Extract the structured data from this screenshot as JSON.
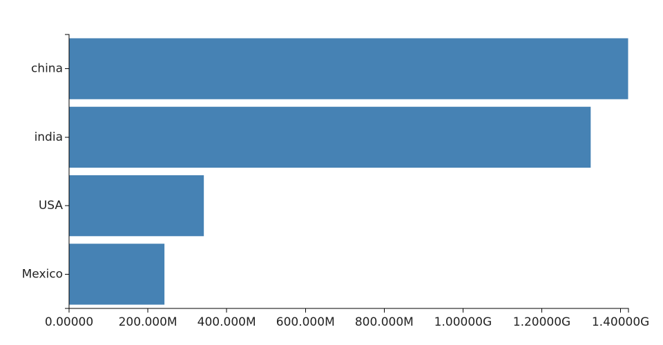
{
  "chart_data": {
    "type": "bar",
    "orientation": "horizontal",
    "categories": [
      "china",
      "india",
      "USA",
      "Mexico"
    ],
    "values": [
      1420000000,
      1325000000,
      343000000,
      243000000
    ],
    "x_ticks": [
      {
        "value": 0,
        "label": "0.00000"
      },
      {
        "value": 200000000,
        "label": "200.000M"
      },
      {
        "value": 400000000,
        "label": "400.000M"
      },
      {
        "value": 600000000,
        "label": "600.000M"
      },
      {
        "value": 800000000,
        "label": "800.000M"
      },
      {
        "value": 1000000000,
        "label": "1.00000G"
      },
      {
        "value": 1200000000,
        "label": "1.20000G"
      },
      {
        "value": 1400000000,
        "label": "1.40000G"
      }
    ],
    "xlim": [
      0,
      1420000000
    ],
    "title": "",
    "xlabel": "",
    "ylabel": "",
    "grid": false,
    "legend": "none",
    "bar_color": "#4682b4"
  }
}
